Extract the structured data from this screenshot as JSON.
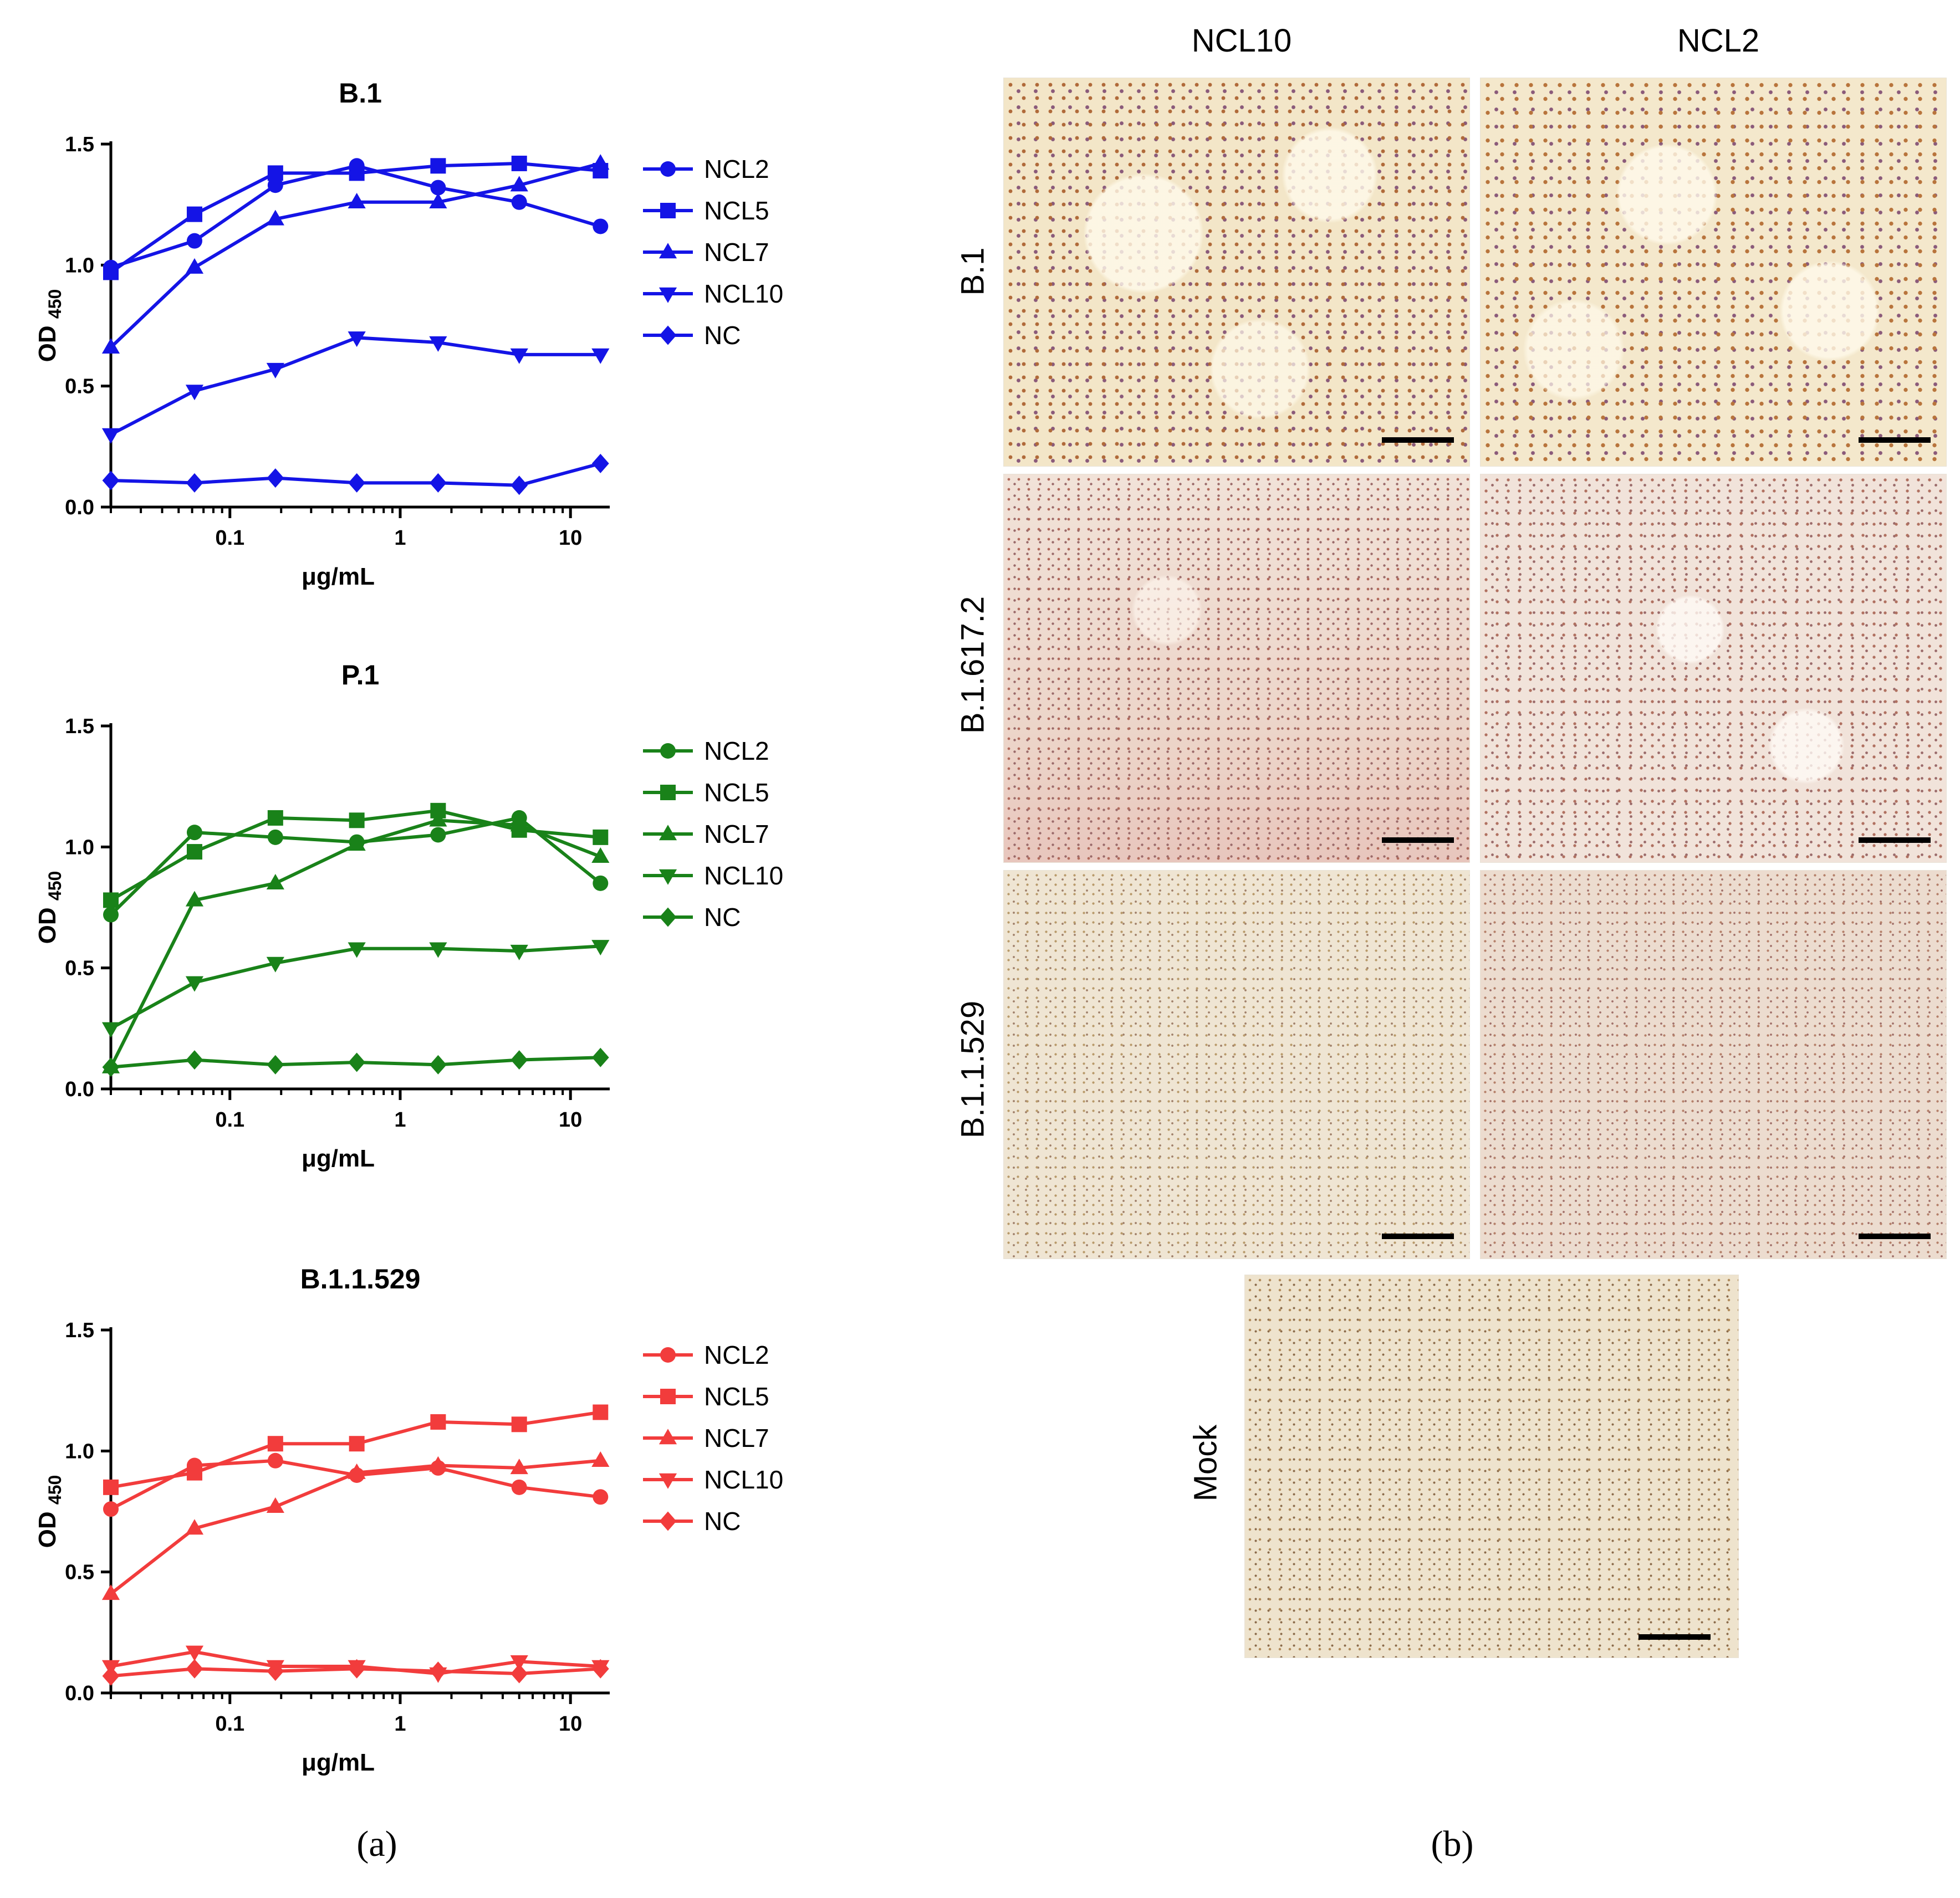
{
  "panel_labels": {
    "a": "(a)",
    "b": "(b)"
  },
  "micrographs": {
    "columns": [
      "NCL10",
      "NCL2"
    ],
    "rows": [
      "B.1",
      "B.1.617.2",
      "B.1.1.529"
    ],
    "mock_label": "Mock"
  },
  "colors": {
    "blue": "#1414e6",
    "green": "#198219",
    "red": "#f23c3c"
  },
  "chart_data": [
    {
      "type": "line",
      "title": "B.1",
      "xlabel": "μg/mL",
      "ylabel": "OD",
      "ylabel_sub": "450",
      "xscale": "log",
      "xlim": [
        0.02,
        17
      ],
      "ylim": [
        0,
        1.5
      ],
      "yticks": [
        "0.0",
        "0.5",
        "1.0",
        "1.5"
      ],
      "xticks": [
        "0.1",
        "1",
        "10"
      ],
      "legend_position": "right",
      "color": "#1414e6",
      "x": [
        0.02,
        0.062,
        0.185,
        0.556,
        1.67,
        5,
        15
      ],
      "series": [
        {
          "name": "NCL2",
          "marker": "circle",
          "values": [
            0.99,
            1.1,
            1.33,
            1.41,
            1.32,
            1.26,
            1.16
          ]
        },
        {
          "name": "NCL5",
          "marker": "square",
          "values": [
            0.97,
            1.21,
            1.38,
            1.38,
            1.41,
            1.42,
            1.39
          ]
        },
        {
          "name": "NCL7",
          "marker": "triangle-up",
          "values": [
            0.66,
            0.99,
            1.19,
            1.26,
            1.26,
            1.33,
            1.42
          ]
        },
        {
          "name": "NCL10",
          "marker": "triangle-down",
          "values": [
            0.3,
            0.48,
            0.57,
            0.7,
            0.68,
            0.63,
            0.63
          ]
        },
        {
          "name": "NC",
          "marker": "diamond",
          "values": [
            0.11,
            0.1,
            0.12,
            0.1,
            0.1,
            0.09,
            0.18
          ]
        }
      ]
    },
    {
      "type": "line",
      "title": "P.1",
      "xlabel": "μg/mL",
      "ylabel": "OD",
      "ylabel_sub": "450",
      "xscale": "log",
      "xlim": [
        0.02,
        17
      ],
      "ylim": [
        0,
        1.5
      ],
      "yticks": [
        "0.0",
        "0.5",
        "1.0",
        "1.5"
      ],
      "xticks": [
        "0.1",
        "1",
        "10"
      ],
      "legend_position": "right",
      "color": "#198219",
      "x": [
        0.02,
        0.062,
        0.185,
        0.556,
        1.67,
        5,
        15
      ],
      "series": [
        {
          "name": "NCL2",
          "marker": "circle",
          "values": [
            0.72,
            1.06,
            1.04,
            1.02,
            1.05,
            1.12,
            0.85
          ]
        },
        {
          "name": "NCL5",
          "marker": "square",
          "values": [
            0.78,
            0.98,
            1.12,
            1.11,
            1.15,
            1.07,
            1.04
          ]
        },
        {
          "name": "NCL7",
          "marker": "triangle-up",
          "values": [
            0.09,
            0.78,
            0.85,
            1.01,
            1.11,
            1.09,
            0.96
          ]
        },
        {
          "name": "NCL10",
          "marker": "triangle-down",
          "values": [
            0.25,
            0.44,
            0.52,
            0.58,
            0.58,
            0.57,
            0.59
          ]
        },
        {
          "name": "NC",
          "marker": "diamond",
          "values": [
            0.09,
            0.12,
            0.1,
            0.11,
            0.1,
            0.12,
            0.13
          ]
        }
      ]
    },
    {
      "type": "line",
      "title": "B.1.1.529",
      "xlabel": "μg/mL",
      "ylabel": "OD",
      "ylabel_sub": "450",
      "xscale": "log",
      "xlim": [
        0.02,
        17
      ],
      "ylim": [
        0,
        1.5
      ],
      "yticks": [
        "0.0",
        "0.5",
        "1.0",
        "1.5"
      ],
      "xticks": [
        "0.1",
        "1",
        "10"
      ],
      "legend_position": "right",
      "color": "#f23c3c",
      "x": [
        0.02,
        0.062,
        0.185,
        0.556,
        1.67,
        5,
        15
      ],
      "series": [
        {
          "name": "NCL2",
          "marker": "circle",
          "values": [
            0.76,
            0.94,
            0.96,
            0.9,
            0.93,
            0.85,
            0.81
          ]
        },
        {
          "name": "NCL5",
          "marker": "square",
          "values": [
            0.85,
            0.91,
            1.03,
            1.03,
            1.12,
            1.11,
            1.16
          ]
        },
        {
          "name": "NCL7",
          "marker": "triangle-up",
          "values": [
            0.41,
            0.68,
            0.77,
            0.91,
            0.94,
            0.93,
            0.96
          ]
        },
        {
          "name": "NCL10",
          "marker": "triangle-down",
          "values": [
            0.11,
            0.17,
            0.11,
            0.11,
            0.08,
            0.13,
            0.11
          ]
        },
        {
          "name": "NC",
          "marker": "diamond",
          "values": [
            0.07,
            0.1,
            0.09,
            0.1,
            0.09,
            0.08,
            0.1
          ]
        }
      ]
    }
  ]
}
